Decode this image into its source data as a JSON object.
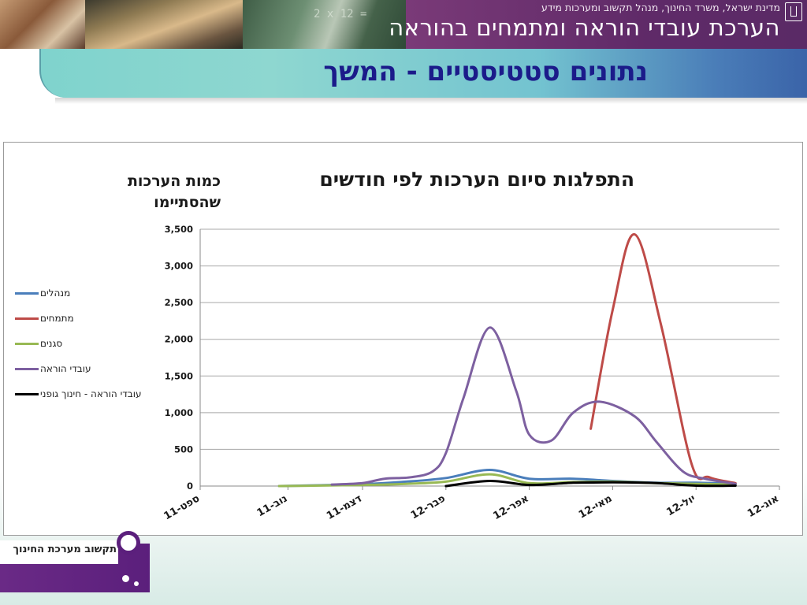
{
  "header": {
    "subtitle": "מדינת ישראל, משרד החינוך, מנהל תקשוב ומערכות מידע",
    "title": "הערכת עובדי הוראה ומתמחים בהוראה"
  },
  "slide": {
    "title": "נתונים סטטיסטיים - המשך"
  },
  "footer": {
    "logo_text": "תקשוב מערכת החינוך"
  },
  "chart_data": {
    "type": "line",
    "title": "התפלגות סיום הערכות לפי חודשים",
    "ylabel": "כמות הערכות שהסתיימו",
    "xlabel": "",
    "ylim": [
      0,
      3500
    ],
    "yticks": [
      0,
      500,
      1000,
      1500,
      2000,
      2500,
      3000,
      3500
    ],
    "ytick_labels": [
      "0",
      "500",
      "1,000",
      "1,500",
      "2,000",
      "2,500",
      "3,000",
      "3,500"
    ],
    "xtick_labels": [
      "ספט-11",
      "נוב-11",
      "דצמ-11",
      "פבר-12",
      "אפר-12",
      "מאי-12",
      "יול-12",
      "אוג-12"
    ],
    "xtick_positions": [
      0,
      2,
      3.7,
      5.6,
      7.5,
      9.4,
      11.3,
      13.2
    ],
    "xlim": [
      0,
      13.2
    ],
    "grid": true,
    "legend_position": "left",
    "series": [
      {
        "name": "מנהלים",
        "color": "#4a7ebb",
        "points": [
          [
            1.8,
            0
          ],
          [
            2.6,
            10
          ],
          [
            3.7,
            25
          ],
          [
            4.7,
            60
          ],
          [
            5.6,
            110
          ],
          [
            6.6,
            220
          ],
          [
            7.5,
            100
          ],
          [
            8.5,
            100
          ],
          [
            9.4,
            70
          ],
          [
            10.4,
            45
          ],
          [
            11.3,
            45
          ],
          [
            12.2,
            30
          ]
        ]
      },
      {
        "name": "מתמחים",
        "color": "#be4b48",
        "points": [
          [
            8.9,
            780
          ],
          [
            9.4,
            2400
          ],
          [
            9.9,
            3430
          ],
          [
            10.5,
            2200
          ],
          [
            11.2,
            300
          ],
          [
            11.6,
            120
          ],
          [
            12.2,
            40
          ]
        ]
      },
      {
        "name": "סגנים",
        "color": "#98b954",
        "points": [
          [
            1.8,
            0
          ],
          [
            2.6,
            5
          ],
          [
            3.7,
            15
          ],
          [
            4.7,
            30
          ],
          [
            5.6,
            60
          ],
          [
            6.6,
            160
          ],
          [
            7.5,
            40
          ],
          [
            8.5,
            55
          ],
          [
            9.4,
            60
          ],
          [
            10.4,
            40
          ],
          [
            11.3,
            30
          ],
          [
            12.2,
            20
          ]
        ]
      },
      {
        "name": "עובדי הוראה",
        "color": "#7d60a0",
        "points": [
          [
            3.0,
            20
          ],
          [
            3.7,
            40
          ],
          [
            4.2,
            100
          ],
          [
            4.8,
            120
          ],
          [
            5.3,
            200
          ],
          [
            5.6,
            450
          ],
          [
            6.0,
            1200
          ],
          [
            6.6,
            2160
          ],
          [
            7.2,
            1300
          ],
          [
            7.5,
            700
          ],
          [
            8.0,
            620
          ],
          [
            8.5,
            1000
          ],
          [
            9.1,
            1150
          ],
          [
            9.9,
            950
          ],
          [
            10.4,
            600
          ],
          [
            11.0,
            200
          ],
          [
            11.5,
            100
          ],
          [
            12.2,
            30
          ]
        ]
      },
      {
        "name": "עובדי הוראה - חינוך גופני",
        "color": "#000000",
        "points": [
          [
            5.6,
            0
          ],
          [
            6.6,
            70
          ],
          [
            7.5,
            15
          ],
          [
            8.5,
            45
          ],
          [
            9.4,
            50
          ],
          [
            10.4,
            40
          ],
          [
            11.3,
            5
          ],
          [
            12.2,
            5
          ]
        ]
      }
    ]
  }
}
